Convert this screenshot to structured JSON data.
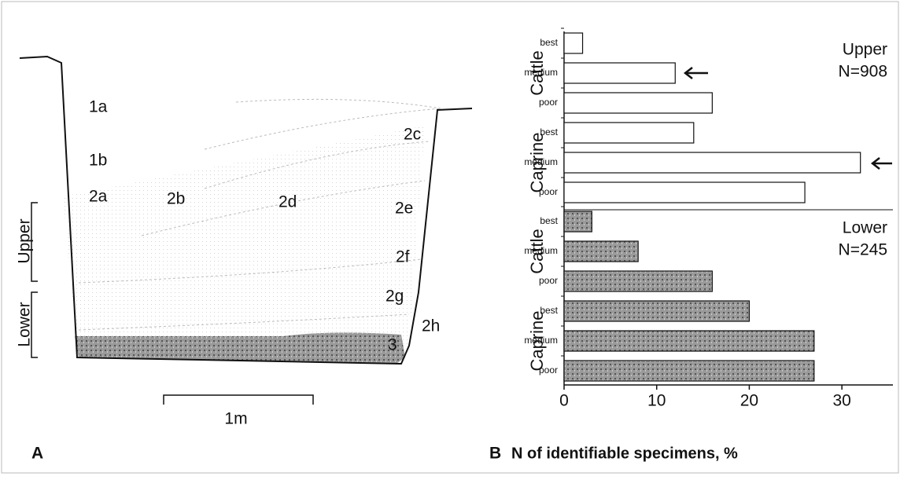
{
  "diagram": {
    "panel_label": "A",
    "layers": [
      "1a",
      "1b",
      "2a",
      "2b",
      "2c",
      "2d",
      "2e",
      "2f",
      "2g",
      "2h",
      "3"
    ],
    "brackets": [
      "Upper",
      "Lower"
    ],
    "scale": "1m"
  },
  "chart_data": {
    "type": "bar",
    "panel_label": "B",
    "x_label": "N of identifiable specimens, %",
    "xlim": [
      0,
      35
    ],
    "xticks": [
      0,
      10,
      20,
      30
    ],
    "panels": [
      {
        "label": "Upper",
        "n": "N=908",
        "color": "#ffffff",
        "groups": [
          {
            "name": "Cattle",
            "categories": [
              "best",
              "medium",
              "poor"
            ],
            "values": [
              2,
              12,
              16
            ]
          },
          {
            "name": "Caprine",
            "categories": [
              "best",
              "medium",
              "poor"
            ],
            "values": [
              14,
              32,
              26
            ]
          }
        ]
      },
      {
        "label": "Lower",
        "n": "N=245",
        "color": "#8a8a8a",
        "groups": [
          {
            "name": "Cattle",
            "categories": [
              "best",
              "medium",
              "poor"
            ],
            "values": [
              3,
              8,
              16
            ]
          },
          {
            "name": "Caprine",
            "categories": [
              "best",
              "medium",
              "poor"
            ],
            "values": [
              20,
              27,
              27
            ]
          }
        ]
      }
    ]
  }
}
